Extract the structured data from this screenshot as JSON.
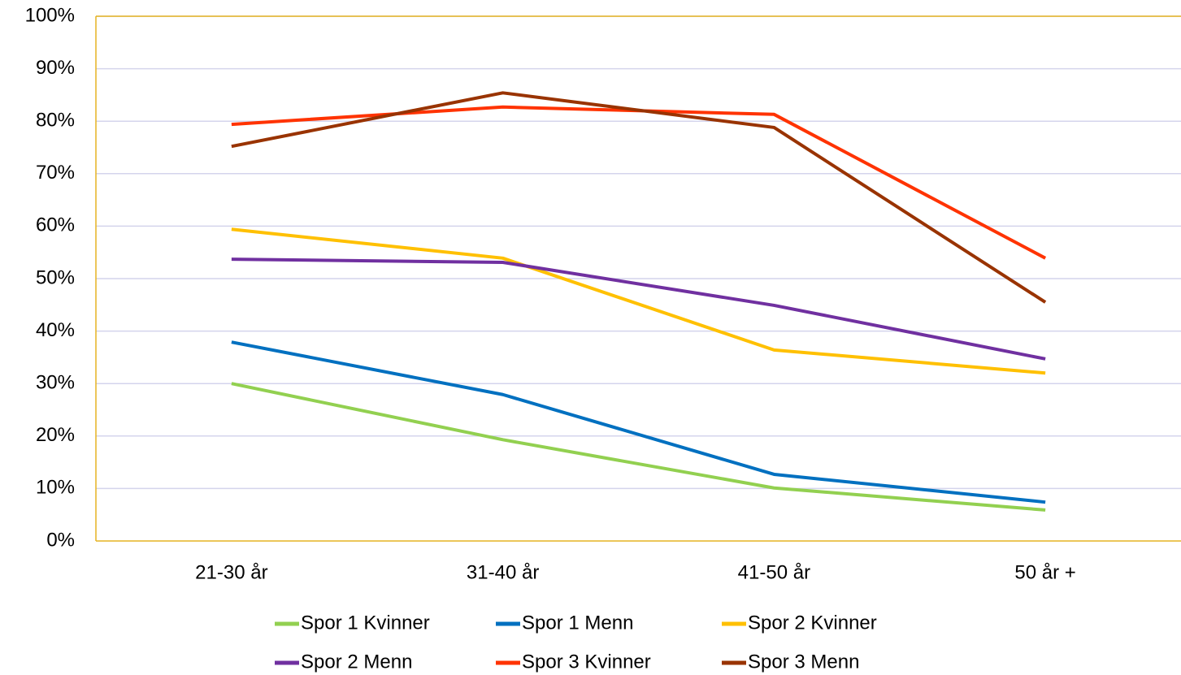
{
  "chart_data": {
    "type": "line",
    "categories": [
      "21-30 år",
      "31-40 år",
      "41-50 år",
      "50 år +"
    ],
    "series": [
      {
        "name": "Spor 1 Kvinner",
        "color": "#92d050",
        "values": [
          30,
          19.3,
          10.1,
          5.9
        ]
      },
      {
        "name": "Spor 1 Menn",
        "color": "#0070c0",
        "values": [
          37.9,
          27.9,
          12.7,
          7.4
        ]
      },
      {
        "name": "Spor 2 Kvinner",
        "color": "#ffc000",
        "values": [
          59.4,
          53.9,
          36.4,
          32
        ]
      },
      {
        "name": "Spor 2 Menn",
        "color": "#7030a0",
        "values": [
          53.7,
          53.1,
          44.9,
          34.7
        ]
      },
      {
        "name": "Spor 3 Kvinner",
        "color": "#ff3300",
        "values": [
          79.4,
          82.7,
          81.3,
          53.9
        ]
      },
      {
        "name": "Spor 3 Menn",
        "color": "#993300",
        "values": [
          75.2,
          85.4,
          78.8,
          45.5
        ]
      }
    ],
    "ylim": [
      0,
      100
    ],
    "yticks": [
      {
        "value": 0,
        "label": "0%"
      },
      {
        "value": 10,
        "label": "10%"
      },
      {
        "value": 20,
        "label": "20%"
      },
      {
        "value": 30,
        "label": "30%"
      },
      {
        "value": 40,
        "label": "40%"
      },
      {
        "value": 50,
        "label": "50%"
      },
      {
        "value": 60,
        "label": "60%"
      },
      {
        "value": 70,
        "label": "70%"
      },
      {
        "value": 80,
        "label": "80%"
      },
      {
        "value": 90,
        "label": "90%"
      },
      {
        "value": 100,
        "label": "100%"
      }
    ],
    "grid": true,
    "legend": "bottom"
  }
}
